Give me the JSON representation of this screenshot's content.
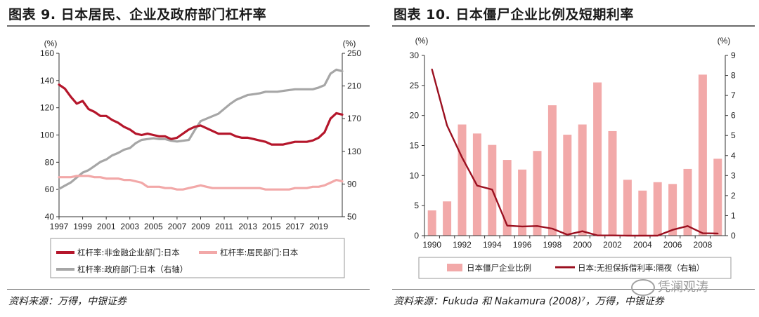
{
  "left": {
    "title": "图表 9. 日本居民、企业及政府部门杠杆率",
    "source": "资料来源：万得，中银证券"
  },
  "right": {
    "title": "图表 10. 日本僵尸企业比例及短期利率",
    "source": "资料来源：Fukuda 和 Nakamura (2008)⁷，万得，中银证券"
  },
  "watermark": "凭澜观涛",
  "chart_data": [
    {
      "type": "line",
      "title": "图表 9. 日本居民、企业及政府部门杠杆率",
      "y_unit_left": "(%)",
      "y_unit_right": "(%)",
      "ylim_left": [
        40,
        160
      ],
      "yticks_left": [
        40,
        60,
        80,
        100,
        120,
        140,
        160
      ],
      "ylim_right": [
        50,
        250
      ],
      "yticks_right": [
        50,
        90,
        130,
        170,
        210,
        250
      ],
      "xlim": [
        1997,
        2021
      ],
      "xticks": [
        "1997",
        "1999",
        "2001",
        "2003",
        "2005",
        "2007",
        "2009",
        "2011",
        "2013",
        "2015",
        "2017",
        "2019"
      ],
      "legend_position": "bottom",
      "series": [
        {
          "name": "杠杆率:非金融企业部门:日本",
          "axis": "left",
          "color": "#b5162b",
          "x": [
            1997,
            1997.5,
            1998,
            1998.5,
            1999,
            1999.5,
            2000,
            2000.5,
            2001,
            2001.5,
            2002,
            2002.5,
            2003,
            2003.5,
            2004,
            2004.5,
            2005,
            2005.5,
            2006,
            2006.5,
            2007,
            2007.5,
            2008,
            2008.5,
            2009,
            2009.5,
            2010,
            2010.5,
            2011,
            2011.5,
            2012,
            2012.5,
            2013,
            2013.5,
            2014,
            2014.5,
            2015,
            2015.5,
            2016,
            2016.5,
            2017,
            2017.5,
            2018,
            2018.5,
            2019,
            2019.5,
            2020,
            2020.5,
            2021
          ],
          "values": [
            137,
            134,
            128,
            123,
            125,
            119,
            117,
            114,
            114,
            111,
            109,
            106,
            104,
            101,
            100,
            101,
            100,
            99,
            99,
            97,
            98,
            101,
            104,
            106,
            107,
            105,
            103,
            101,
            101,
            101,
            99,
            98,
            98,
            97,
            96,
            95,
            93,
            93,
            93,
            94,
            95,
            95,
            95,
            96,
            98,
            102,
            112,
            116,
            115
          ]
        },
        {
          "name": "杠杆率:居民部门:日本",
          "axis": "left",
          "color": "#f2a8a8",
          "x": [
            1997,
            1997.5,
            1998,
            1998.5,
            1999,
            1999.5,
            2000,
            2000.5,
            2001,
            2001.5,
            2002,
            2002.5,
            2003,
            2003.5,
            2004,
            2004.5,
            2005,
            2005.5,
            2006,
            2006.5,
            2007,
            2007.5,
            2008,
            2008.5,
            2009,
            2009.5,
            2010,
            2010.5,
            2011,
            2011.5,
            2012,
            2012.5,
            2013,
            2013.5,
            2014,
            2014.5,
            2015,
            2015.5,
            2016,
            2016.5,
            2017,
            2017.5,
            2018,
            2018.5,
            2019,
            2019.5,
            2020,
            2020.5,
            2021
          ],
          "values": [
            69,
            69,
            69,
            70,
            70,
            70,
            69,
            69,
            68,
            68,
            68,
            67,
            67,
            66,
            65,
            62,
            62,
            62,
            61,
            61,
            60,
            60,
            61,
            62,
            63,
            62,
            61,
            61,
            61,
            61,
            61,
            61,
            61,
            61,
            61,
            60,
            60,
            60,
            60,
            60,
            61,
            61,
            61,
            62,
            62,
            63,
            65,
            67,
            66
          ]
        },
        {
          "name": "杠杆率:政府部门:日本（右轴）",
          "axis": "right",
          "color": "#a6a6a6",
          "x": [
            1997,
            1997.5,
            1998,
            1998.5,
            1999,
            1999.5,
            2000,
            2000.5,
            2001,
            2001.5,
            2002,
            2002.5,
            2003,
            2003.5,
            2004,
            2004.5,
            2005,
            2005.5,
            2006,
            2006.5,
            2007,
            2007.5,
            2008,
            2008.5,
            2009,
            2009.5,
            2010,
            2010.5,
            2011,
            2011.5,
            2012,
            2012.5,
            2013,
            2013.5,
            2014,
            2014.5,
            2015,
            2015.5,
            2016,
            2016.5,
            2017,
            2017.5,
            2018,
            2018.5,
            2019,
            2019.5,
            2020,
            2020.5,
            2021
          ],
          "values": [
            84,
            88,
            92,
            98,
            104,
            107,
            112,
            117,
            120,
            125,
            128,
            132,
            134,
            140,
            144,
            145,
            146,
            145,
            145,
            143,
            142,
            143,
            144,
            156,
            167,
            170,
            173,
            176,
            182,
            188,
            193,
            196,
            199,
            200,
            201,
            203,
            203,
            203,
            204,
            205,
            206,
            206,
            206,
            206,
            208,
            211,
            225,
            230,
            228
          ]
        }
      ]
    },
    {
      "type": "bar",
      "title": "图表 10. 日本僵尸企业比例及短期利率",
      "y_unit_left": "(%)",
      "y_unit_right": "(%)",
      "ylim_left": [
        0,
        30
      ],
      "yticks_left": [
        0,
        5,
        10,
        15,
        20,
        25,
        30
      ],
      "ylim_right": [
        0,
        9
      ],
      "yticks_right": [
        0,
        1,
        2,
        3,
        4,
        5,
        6,
        7,
        8,
        9
      ],
      "categories": [
        "1990",
        "1991",
        "1992",
        "1993",
        "1994",
        "1995",
        "1996",
        "1997",
        "1998",
        "1999",
        "2000",
        "2001",
        "2002",
        "2003",
        "2004",
        "2005",
        "2006",
        "2007",
        "2008",
        "2009"
      ],
      "xticks": [
        "1990",
        "1992",
        "1994",
        "1996",
        "1998",
        "2000",
        "2002",
        "2004",
        "2006",
        "2008"
      ],
      "legend_position": "bottom",
      "series": [
        {
          "name": "日本僵尸企业比例",
          "type": "bar",
          "axis": "left",
          "color": "#f2a9a9",
          "values": [
            4.2,
            5.7,
            18.5,
            17.0,
            15.1,
            12.6,
            11.0,
            14.1,
            21.7,
            16.8,
            18.5,
            25.5,
            17.4,
            9.3,
            7.5,
            8.9,
            8.6,
            11.1,
            26.8,
            12.8
          ]
        },
        {
          "name": "日本:无担保拆借利率:隔夜（右轴）",
          "type": "line",
          "axis": "right",
          "color": "#9b1020",
          "values": [
            8.3,
            5.5,
            3.9,
            2.5,
            2.3,
            0.5,
            0.46,
            0.48,
            0.35,
            0.05,
            0.22,
            0.01,
            0.01,
            0.0,
            0.0,
            0.0,
            0.29,
            0.48,
            0.12,
            0.11
          ]
        }
      ]
    }
  ]
}
